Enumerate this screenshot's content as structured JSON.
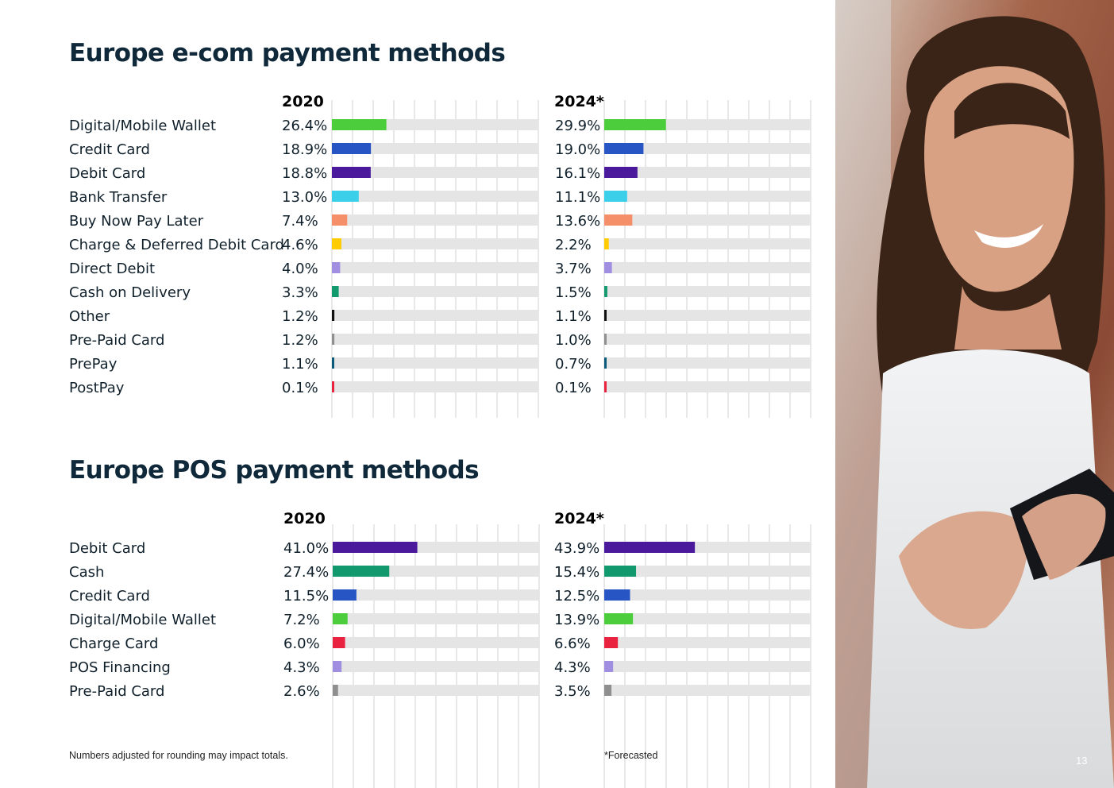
{
  "page": {
    "number": "13"
  },
  "ecom": {
    "title": "Europe e-com payment methods",
    "year_2020": "2020",
    "year_2024": "2024*"
  },
  "pos": {
    "title": "Europe POS payment methods",
    "year_2020": "2020",
    "year_2024": "2024*"
  },
  "footnotes": {
    "rounding": "Numbers adjusted for rounding may impact totals.",
    "forecast": "*Forecasted"
  },
  "photo": {
    "alt": ""
  },
  "chart_data": [
    {
      "type": "bar",
      "orientation": "horizontal",
      "title": "Europe e-com payment methods",
      "unit": "%",
      "xlim": [
        0,
        100
      ],
      "grid": true,
      "categories": [
        "Digital/Mobile Wallet",
        "Credit Card",
        "Debit Card",
        "Bank Transfer",
        "Buy Now Pay Later",
        "Charge & Deferred Debit Card",
        "Direct Debit",
        "Cash on Delivery",
        "Other",
        "Pre-Paid Card",
        "PrePay",
        "PostPay"
      ],
      "colors": [
        "#4ccd3c",
        "#2756c4",
        "#4b1a9c",
        "#3ccfea",
        "#f58f6a",
        "#fecc00",
        "#a08ee0",
        "#12996e",
        "#111111",
        "#8f8f8f",
        "#0b5a7a",
        "#e8223f"
      ],
      "labels": {
        "2020": [
          "26.4%",
          "18.9%",
          "18.8%",
          "13.0%",
          "7.4%",
          "4.6%",
          "4.0%",
          "3.3%",
          "1.2%",
          "1.2%",
          "1.1%",
          "0.1%"
        ],
        "2024*": [
          "29.9%",
          "19.0%",
          "16.1%",
          "11.1%",
          "13.6%",
          "2.2%",
          "3.7%",
          "1.5%",
          "1.1%",
          "1.0%",
          "0.7%",
          "0.1%"
        ]
      },
      "series": [
        {
          "name": "2020",
          "values": [
            26.4,
            18.9,
            18.8,
            13.0,
            7.4,
            4.6,
            4.0,
            3.3,
            1.2,
            1.2,
            1.1,
            0.1
          ]
        },
        {
          "name": "2024*",
          "values": [
            29.9,
            19.0,
            16.1,
            11.1,
            13.6,
            2.2,
            3.7,
            1.5,
            1.1,
            1.0,
            0.7,
            0.1
          ]
        }
      ]
    },
    {
      "type": "bar",
      "orientation": "horizontal",
      "title": "Europe POS payment methods",
      "unit": "%",
      "xlim": [
        0,
        100
      ],
      "grid": true,
      "categories": [
        "Debit Card",
        "Cash",
        "Credit Card",
        "Digital/Mobile Wallet",
        "Charge Card",
        "POS Financing",
        "Pre-Paid Card"
      ],
      "colors": [
        "#4b1a9c",
        "#12996e",
        "#2756c4",
        "#4ccd3c",
        "#e8223f",
        "#a08ee0",
        "#8f8f8f"
      ],
      "labels": {
        "2020": [
          "41.0%",
          "27.4%",
          "11.5%",
          "7.2%",
          "6.0%",
          "4.3%",
          "2.6%"
        ],
        "2024*": [
          "43.9%",
          "15.4%",
          "12.5%",
          "13.9%",
          "6.6%",
          "4.3%",
          "3.5%"
        ]
      },
      "series": [
        {
          "name": "2020",
          "values": [
            41.0,
            27.4,
            11.5,
            7.2,
            6.0,
            4.3,
            2.6
          ]
        },
        {
          "name": "2024*",
          "values": [
            43.9,
            15.4,
            12.5,
            13.9,
            6.6,
            4.3,
            3.5
          ]
        }
      ]
    }
  ]
}
